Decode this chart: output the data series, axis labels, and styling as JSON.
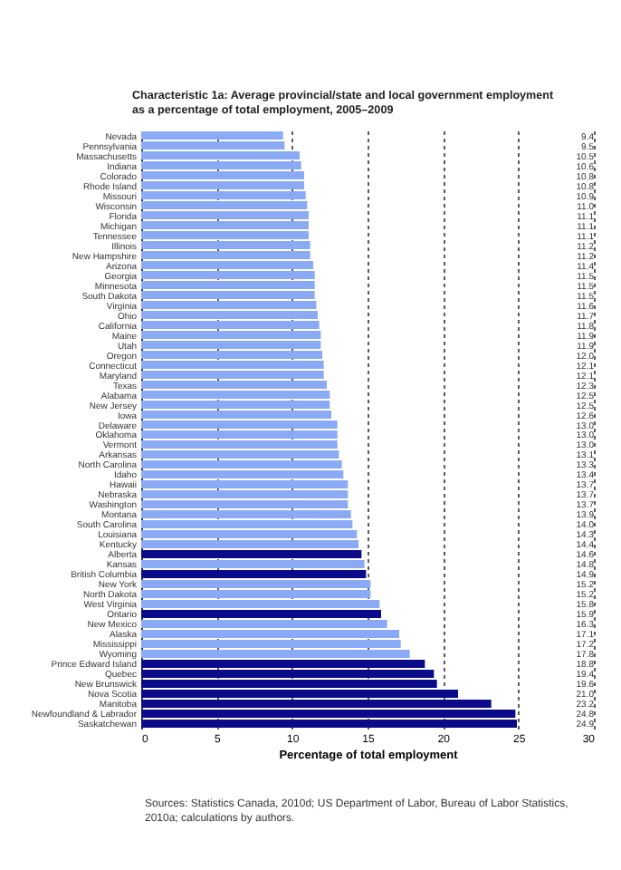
{
  "chart_data": {
    "type": "bar",
    "orientation": "horizontal",
    "title": "Characteristic 1a: Average provincial/state and local government employment as a percentage of total employment, 2005–2009",
    "xlabel": "Percentage of total employment",
    "categories": [
      "Nevada",
      "Pennsylvania",
      "Massachusetts",
      "Indiana",
      "Colorado",
      "Rhode Island",
      "Missouri",
      "Wisconsin",
      "Florida",
      "Michigan",
      "Tennessee",
      "Illinois",
      "New Hampshire",
      "Arizona",
      "Georgia",
      "Minnesota",
      "South Dakota",
      "Virginia",
      "Ohio",
      "California",
      "Maine",
      "Utah",
      "Oregon",
      "Connecticut",
      "Maryland",
      "Texas",
      "Alabama",
      "New Jersey",
      "Iowa",
      "Delaware",
      "Oklahoma",
      "Vermont",
      "Arkansas",
      "North Carolina",
      "Idaho",
      "Hawaii",
      "Nebraska",
      "Washington",
      "Montana",
      "South Carolina",
      "Louisiana",
      "Kentucky",
      "Alberta",
      "Kansas",
      "British Columbia",
      "New York",
      "North Dakota",
      "West Virginia",
      "Ontario",
      "New Mexico",
      "Alaska",
      "Mississippi",
      "Wyoming",
      "Prince Edward Island",
      "Quebec",
      "New Brunswick",
      "Nova Scotia",
      "Manitoba",
      "Newfoundland & Labrador",
      "Saskatchewan"
    ],
    "values": [
      9.4,
      9.5,
      10.5,
      10.6,
      10.8,
      10.8,
      10.9,
      11.0,
      11.1,
      11.1,
      11.1,
      11.2,
      11.2,
      11.4,
      11.5,
      11.5,
      11.5,
      11.6,
      11.7,
      11.8,
      11.9,
      11.9,
      12.0,
      12.1,
      12.1,
      12.3,
      12.5,
      12.5,
      12.6,
      13.0,
      13.0,
      13.0,
      13.1,
      13.3,
      13.4,
      13.7,
      13.7,
      13.7,
      13.9,
      14.0,
      14.3,
      14.4,
      14.6,
      14.8,
      14.9,
      15.2,
      15.2,
      15.8,
      15.9,
      16.3,
      17.1,
      17.2,
      17.8,
      18.8,
      19.4,
      19.6,
      21.0,
      23.2,
      24.8,
      24.9
    ],
    "colors": [
      "#8aaaf5",
      "#8aaaf5",
      "#8aaaf5",
      "#8aaaf5",
      "#8aaaf5",
      "#8aaaf5",
      "#8aaaf5",
      "#8aaaf5",
      "#8aaaf5",
      "#8aaaf5",
      "#8aaaf5",
      "#8aaaf5",
      "#8aaaf5",
      "#8aaaf5",
      "#8aaaf5",
      "#8aaaf5",
      "#8aaaf5",
      "#8aaaf5",
      "#8aaaf5",
      "#8aaaf5",
      "#8aaaf5",
      "#8aaaf5",
      "#8aaaf5",
      "#8aaaf5",
      "#8aaaf5",
      "#8aaaf5",
      "#8aaaf5",
      "#8aaaf5",
      "#8aaaf5",
      "#8aaaf5",
      "#8aaaf5",
      "#8aaaf5",
      "#8aaaf5",
      "#8aaaf5",
      "#8aaaf5",
      "#8aaaf5",
      "#8aaaf5",
      "#8aaaf5",
      "#8aaaf5",
      "#8aaaf5",
      "#8aaaf5",
      "#8aaaf5",
      "#0b0b8a",
      "#8aaaf5",
      "#0b0b8a",
      "#8aaaf5",
      "#8aaaf5",
      "#8aaaf5",
      "#0b0b8a",
      "#8aaaf5",
      "#8aaaf5",
      "#8aaaf5",
      "#8aaaf5",
      "#0b0b8a",
      "#0b0b8a",
      "#0b0b8a",
      "#0b0b8a",
      "#0b0b8a",
      "#0b0b8a",
      "#0b0b8a"
    ],
    "value_labels": [
      "9.4",
      "9.5",
      "10.5",
      "10.6",
      "10.8",
      "10.8",
      "10.9",
      "11.0",
      "11.1",
      "11.1",
      "11.1",
      "11.2",
      "11.2",
      "11.4",
      "11.5",
      "11.5",
      "11.5",
      "11.6",
      "11.7",
      "11.8",
      "11.9",
      "11.9",
      "12.0",
      "12.1",
      "12.1",
      "12.3",
      "12.5",
      "12.5",
      "12.6",
      "13.0",
      "13.0",
      "13.0",
      "13.1",
      "13.3",
      "13.4",
      "13.7",
      "13.7",
      "13.7",
      "13.9",
      "14.0",
      "14.3",
      "14.4",
      "14.6",
      "14.8",
      "14.9",
      "15.2",
      "15.2",
      "15.8",
      "15.9",
      "16.3",
      "17.1",
      "17.2",
      "17.8",
      "18.8",
      "19.4",
      "19.6",
      "21.0",
      "23.2",
      "24.8",
      "24.9"
    ],
    "xlim": [
      0,
      30
    ],
    "xticks": [
      0,
      5,
      10,
      15,
      20,
      25,
      30
    ],
    "grid": "x",
    "annotations": [
      "Sources: Statistics Canada, 2010d; US Department of Labor, Bureau of Labor Statistics, 2010a; calculations by authors."
    ]
  }
}
